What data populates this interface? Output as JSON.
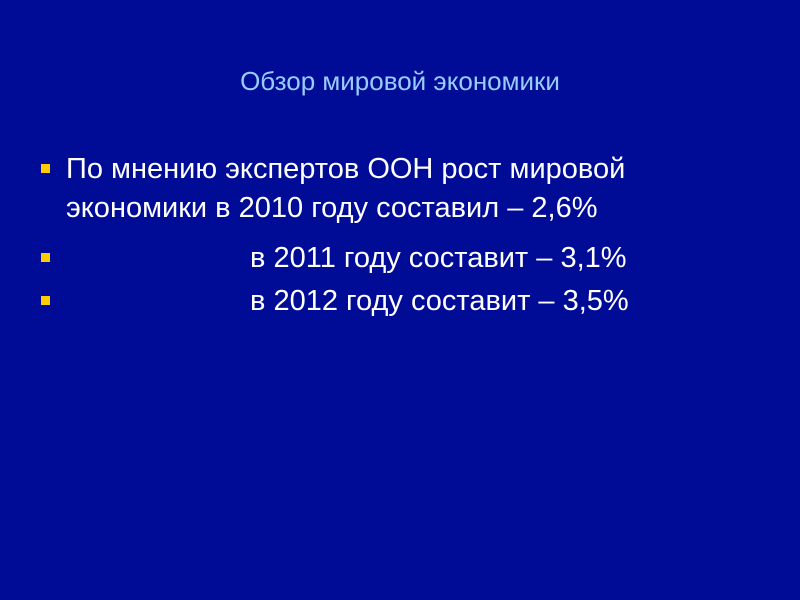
{
  "slide": {
    "title": "Обзор мировой экономики",
    "bullets": [
      {
        "line1": "По мнению экспертов ООН рост мировой",
        "line2": "экономики в 2010 году составил – 2,6%"
      },
      {
        "text": "в 2011 году составит – 3,1%"
      },
      {
        "text": "в 2012 году составит – 3,5%"
      }
    ],
    "colors": {
      "background": "#000b96",
      "title": "#99ccff",
      "bullet": "#ffcc00",
      "text": "#ffffff"
    }
  }
}
